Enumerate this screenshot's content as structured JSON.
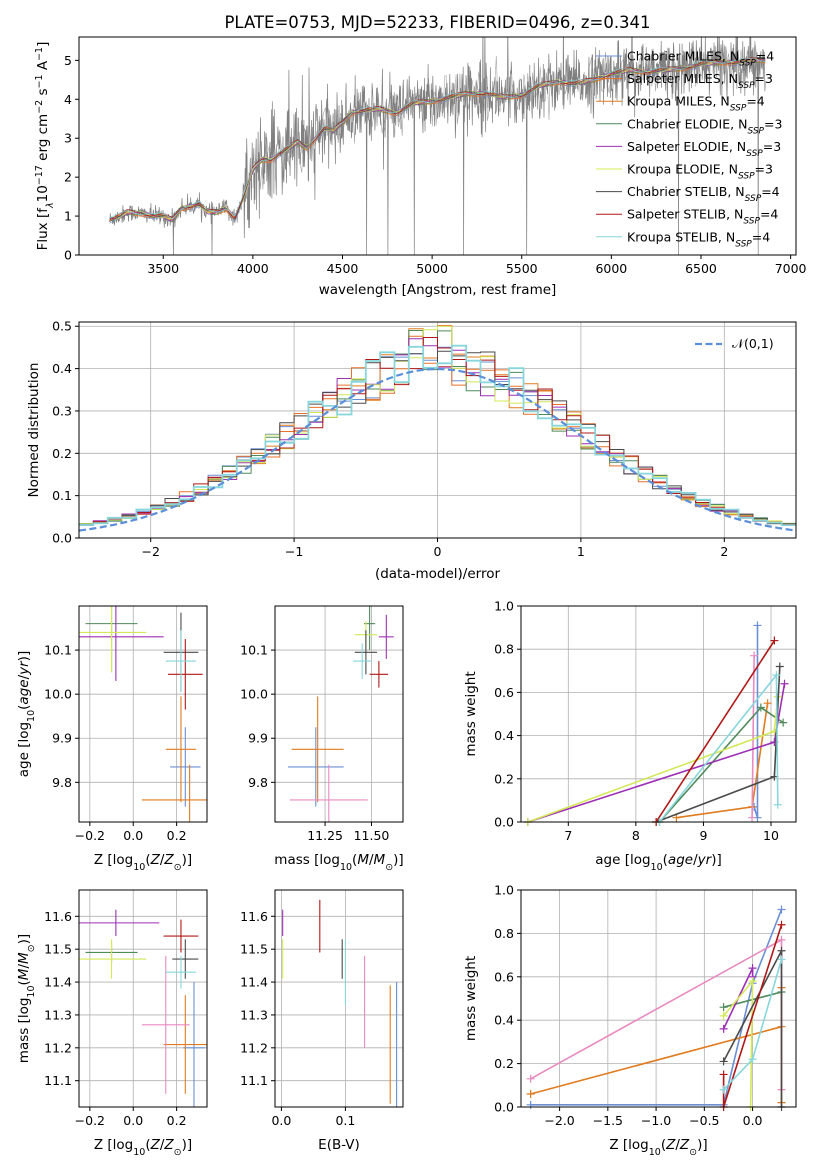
{
  "colors": {
    "Chabrier MILES": "#6a8fd4",
    "Salpeter MILES": "#e8722a",
    "Kroupa MILES": "#e07b1f",
    "Chabrier ELODIE": "#4f8a5a",
    "Salpeter ELODIE": "#9d2fb5",
    "Kroupa ELODIE": "#d4e857",
    "Chabrier STELIB": "#4a4a4a",
    "Salpeter STELIB": "#b01818",
    "Kroupa STELIB": "#87d6dc",
    "pink": "#e88ac0",
    "data": "#808080",
    "normal": "#5b8fd9"
  },
  "chart_data": [
    {
      "id": "spectrum",
      "type": "line",
      "title": "PLATE=0753, MJD=52233, FIBERID=0496, z=0.341",
      "xlabel": "wavelength [Angstrom, rest frame]",
      "ylabel": "Flux [f_λ 10^-17 erg cm^-2 s^-1 A^-1]",
      "xlim": [
        3030,
        7030
      ],
      "ylim": [
        0,
        5.6
      ],
      "xticks": [
        "3500",
        "4000",
        "4500",
        "5000",
        "5500",
        "6000",
        "6500",
        "7000"
      ],
      "yticks": [
        "0",
        "1",
        "2",
        "3",
        "4",
        "5"
      ],
      "grid": false,
      "legend_position": "right",
      "legend": [
        {
          "label": "Chabrier MILES, N_SSP=4"
        },
        {
          "label": "Salpeter MILES, N_SSP=3"
        },
        {
          "label": "Kroupa MILES, N_SSP=4"
        },
        {
          "label": "Chabrier ELODIE, N_SSP=3"
        },
        {
          "label": "Salpeter ELODIE, N_SSP=3"
        },
        {
          "label": "Kroupa ELODIE, N_SSP=3"
        },
        {
          "label": "Chabrier STELIB, N_SSP=4"
        },
        {
          "label": "Salpeter STELIB, N_SSP=4"
        },
        {
          "label": "Kroupa STELIB, N_SSP=4"
        }
      ],
      "model_continuum": {
        "x": [
          3200,
          3260,
          3300,
          3400,
          3450,
          3500,
          3550,
          3600,
          3700,
          3750,
          3800,
          3850,
          3900,
          3950,
          4000,
          4050,
          4100,
          4150,
          4200,
          4250,
          4300,
          4350,
          4400,
          4450,
          4500,
          4550,
          4600,
          4700,
          4800,
          4900,
          5000,
          5100,
          5200,
          5300,
          5400,
          5500,
          5600,
          5700,
          5800,
          5900,
          6000,
          6100,
          6200,
          6300,
          6400,
          6500,
          6600,
          6700,
          6800,
          6860
        ],
        "y": [
          0.9,
          1.0,
          1.1,
          1.05,
          1.0,
          1.0,
          0.9,
          1.2,
          1.3,
          1.1,
          1.1,
          1.2,
          0.95,
          1.5,
          2.2,
          2.45,
          2.45,
          2.6,
          2.75,
          2.9,
          2.75,
          3.0,
          3.25,
          3.2,
          3.4,
          3.65,
          3.7,
          3.75,
          3.65,
          3.9,
          3.95,
          4.05,
          4.15,
          4.15,
          4.05,
          4.1,
          4.35,
          4.45,
          4.4,
          4.5,
          4.65,
          4.75,
          4.7,
          4.75,
          4.8,
          4.9,
          4.95,
          4.95,
          5.0,
          5.0
        ]
      },
      "data_spectrum_range": [
        3200,
        6860
      ]
    },
    {
      "id": "residuals",
      "type": "line",
      "xlabel": "(data-model)/error",
      "ylabel": "Normed distribution",
      "xlim": [
        -2.5,
        2.5
      ],
      "ylim": [
        0,
        0.51
      ],
      "xticks": [
        "−2",
        "−1",
        "0",
        "1",
        "2"
      ],
      "yticks": [
        "0.0",
        "0.1",
        "0.2",
        "0.3",
        "0.4",
        "0.5"
      ],
      "grid": true,
      "legend_position": "top-right",
      "legend": [
        {
          "label": "𝒩(0,1)"
        }
      ],
      "bin_width": 0.1
    },
    {
      "id": "age_vs_Z",
      "type": "scatter",
      "xlabel": "Z [log10(Z/Z⊙)]",
      "ylabel": "age  [log10(age/yr)]",
      "xlim": [
        -0.25,
        0.34
      ],
      "ylim": [
        9.71,
        10.2
      ],
      "xticks": [
        "−0.2",
        "0.0",
        "0.2"
      ],
      "yticks": [
        "9.8",
        "9.9",
        "10.0",
        "10.1"
      ],
      "points": [
        {
          "model": "Chabrier MILES",
          "x": 0.24,
          "y": 9.835,
          "xerr": 0.07,
          "yerr": 0.09
        },
        {
          "model": "Kroupa MILES",
          "x": 0.22,
          "y": 9.875,
          "xerr": 0.07,
          "yerr": 0.12
        },
        {
          "model": "Kroupa MILES",
          "x": 0.26,
          "y": 9.76,
          "xerr": 0.22,
          "yerr": 0.08
        },
        {
          "model": "Chabrier ELODIE",
          "x": -0.1,
          "y": 10.16,
          "xerr": 0.12,
          "yerr": 0.11
        },
        {
          "model": "Salpeter ELODIE",
          "x": -0.08,
          "y": 10.13,
          "xerr": 0.22,
          "yerr": 0.1
        },
        {
          "model": "Kroupa ELODIE",
          "x": -0.1,
          "y": 10.14,
          "xerr": 0.16,
          "yerr": 0.09
        },
        {
          "model": "Chabrier STELIB",
          "x": 0.22,
          "y": 10.095,
          "xerr": 0.08,
          "yerr": 0.09
        },
        {
          "model": "Salpeter STELIB",
          "x": 0.24,
          "y": 10.045,
          "xerr": 0.08,
          "yerr": 0.08
        },
        {
          "model": "Kroupa STELIB",
          "x": 0.22,
          "y": 10.075,
          "xerr": 0.07,
          "yerr": 0.07
        }
      ]
    },
    {
      "id": "age_vs_mass",
      "type": "scatter",
      "xlabel": "mass [log10(M/M⊙)]",
      "ylabel": "",
      "xlim": [
        10.98,
        11.67
      ],
      "ylim": [
        9.71,
        10.2
      ],
      "xticks": [
        "11.25",
        "11.50"
      ],
      "yticks": [
        "9.8",
        "9.9",
        "10.0",
        "10.1"
      ],
      "points": [
        {
          "model": "Chabrier MILES",
          "x": 11.2,
          "y": 9.835,
          "xerr": 0.15,
          "yerr": 0.09
        },
        {
          "model": "Kroupa MILES",
          "x": 11.21,
          "y": 9.875,
          "xerr": 0.14,
          "yerr": 0.12
        },
        {
          "model": "pink",
          "x": 11.27,
          "y": 9.76,
          "xerr": 0.21,
          "yerr": 0.08
        },
        {
          "model": "Chabrier ELODIE",
          "x": 11.49,
          "y": 10.16,
          "xerr": 0.03,
          "yerr": 0.06
        },
        {
          "model": "Salpeter ELODIE",
          "x": 11.58,
          "y": 10.13,
          "xerr": 0.04,
          "yerr": 0.05
        },
        {
          "model": "Kroupa ELODIE",
          "x": 11.47,
          "y": 10.135,
          "xerr": 0.06,
          "yerr": 0.03
        },
        {
          "model": "Chabrier STELIB",
          "x": 11.47,
          "y": 10.095,
          "xerr": 0.06,
          "yerr": 0.05
        },
        {
          "model": "Salpeter STELIB",
          "x": 11.54,
          "y": 10.045,
          "xerr": 0.05,
          "yerr": 0.03
        },
        {
          "model": "Kroupa STELIB",
          "x": 11.45,
          "y": 10.075,
          "xerr": 0.05,
          "yerr": 0.04
        }
      ]
    },
    {
      "id": "mass_weight_vs_age",
      "type": "line",
      "xlabel": "age  [log10(age/yr)]",
      "ylabel": "mass weight",
      "xlim": [
        6.3,
        10.37
      ],
      "ylim": [
        0,
        1.0
      ],
      "xticks": [
        "7",
        "8",
        "9",
        "10"
      ],
      "yticks": [
        "0.0",
        "0.2",
        "0.4",
        "0.6",
        "0.8",
        "1.0"
      ],
      "grid": true,
      "series": [
        {
          "model": "Chabrier MILES",
          "x": [
            9.75,
            9.8,
            9.8
          ],
          "y": [
            0.07,
            0.02,
            0.91
          ]
        },
        {
          "model": "Kroupa MILES",
          "x": [
            8.6,
            9.72,
            9.95
          ],
          "y": [
            0.02,
            0.07,
            0.55
          ]
        },
        {
          "model": "pink",
          "x": [
            9.72,
            9.75
          ],
          "y": [
            0.02,
            0.77
          ]
        },
        {
          "model": "Chabrier ELODIE",
          "x": [
            8.35,
            9.85,
            10.18
          ],
          "y": [
            0.0,
            0.53,
            0.46
          ]
        },
        {
          "model": "Salpeter ELODIE",
          "x": [
            6.4,
            10.05,
            10.2
          ],
          "y": [
            0.0,
            0.37,
            0.64
          ]
        },
        {
          "model": "Kroupa ELODIE",
          "x": [
            6.4,
            10.05,
            10.1
          ],
          "y": [
            0.0,
            0.42,
            0.58
          ]
        },
        {
          "model": "Chabrier STELIB",
          "x": [
            8.3,
            10.05,
            10.13
          ],
          "y": [
            0.0,
            0.21,
            0.72
          ]
        },
        {
          "model": "Salpeter STELIB",
          "x": [
            8.3,
            10.05
          ],
          "y": [
            0.0,
            0.84
          ]
        },
        {
          "model": "Kroupa STELIB",
          "x": [
            8.35,
            10.08,
            10.1
          ],
          "y": [
            0.0,
            0.68,
            0.08
          ]
        }
      ]
    },
    {
      "id": "mass_vs_Z",
      "type": "scatter",
      "xlabel": "Z [log10(Z/Z⊙)]",
      "ylabel": "mass [log10(M/M⊙)]",
      "xlim": [
        -0.25,
        0.34
      ],
      "ylim": [
        11.02,
        11.68
      ],
      "xticks": [
        "−0.2",
        "0.0",
        "0.2"
      ],
      "yticks": [
        "11.1",
        "11.2",
        "11.3",
        "11.4",
        "11.5",
        "11.6"
      ],
      "points": [
        {
          "model": "Chabrier MILES",
          "x": 0.28,
          "y": 11.2,
          "xerr": 0.05,
          "yerr": 0.2
        },
        {
          "model": "Kroupa MILES",
          "x": 0.24,
          "y": 11.21,
          "xerr": 0.1,
          "yerr": 0.15
        },
        {
          "model": "pink",
          "x": 0.15,
          "y": 11.27,
          "xerr": 0.11,
          "yerr": 0.21
        },
        {
          "model": "Chabrier ELODIE",
          "x": -0.1,
          "y": 11.49,
          "xerr": 0.12,
          "yerr": 0.03
        },
        {
          "model": "Salpeter ELODIE",
          "x": -0.08,
          "y": 11.58,
          "xerr": 0.2,
          "yerr": 0.04
        },
        {
          "model": "Kroupa ELODIE",
          "x": -0.1,
          "y": 11.47,
          "xerr": 0.16,
          "yerr": 0.06
        },
        {
          "model": "Chabrier STELIB",
          "x": 0.24,
          "y": 11.47,
          "xerr": 0.06,
          "yerr": 0.06
        },
        {
          "model": "Salpeter STELIB",
          "x": 0.22,
          "y": 11.54,
          "xerr": 0.08,
          "yerr": 0.05
        },
        {
          "model": "Kroupa STELIB",
          "x": 0.22,
          "y": 11.43,
          "xerr": 0.07,
          "yerr": 0.05
        }
      ]
    },
    {
      "id": "mass_vs_ebv",
      "type": "scatter",
      "xlabel": "E(B-V)",
      "ylabel": "",
      "xlim": [
        -0.01,
        0.19
      ],
      "ylim": [
        11.02,
        11.68
      ],
      "xticks": [
        "0.0",
        "0.1"
      ],
      "yticks": [
        "11.1",
        "11.2",
        "11.3",
        "11.4",
        "11.5",
        "11.6"
      ],
      "points": [
        {
          "model": "Chabrier MILES",
          "x": 0.18,
          "y": 11.2,
          "yerr": 0.2
        },
        {
          "model": "Kroupa MILES",
          "x": 0.17,
          "y": 11.21,
          "yerr": 0.18
        },
        {
          "model": "pink",
          "x": 0.13,
          "y": 11.34,
          "yerr": 0.14
        },
        {
          "model": "Salpeter ELODIE",
          "x": 0.002,
          "y": 11.58,
          "yerr": 0.04
        },
        {
          "model": "Kroupa ELODIE",
          "x": 0.002,
          "y": 11.47,
          "yerr": 0.06
        },
        {
          "model": "Chabrier STELIB",
          "x": 0.095,
          "y": 11.47,
          "yerr": 0.06
        },
        {
          "model": "Salpeter STELIB",
          "x": 0.06,
          "y": 11.57,
          "yerr": 0.08
        },
        {
          "model": "Kroupa STELIB",
          "x": 0.1,
          "y": 11.43,
          "yerr": 0.1
        }
      ]
    },
    {
      "id": "mass_weight_vs_Z",
      "type": "line",
      "xlabel": "Z [log10(Z/Z⊙)]",
      "ylabel": "mass weight",
      "xlim": [
        -2.4,
        0.45
      ],
      "ylim": [
        0,
        1.0
      ],
      "xticks": [
        "−2.0",
        "−1.5",
        "−1.0",
        "−0.5",
        "0.0"
      ],
      "yticks": [
        "0.0",
        "0.2",
        "0.4",
        "0.6",
        "0.8",
        "1.0"
      ],
      "grid": true,
      "series": [
        {
          "model": "Chabrier MILES",
          "x": [
            -2.3,
            -0.3,
            0.0,
            0.3
          ],
          "y": [
            0.01,
            0.01,
            0.57,
            0.91
          ]
        },
        {
          "model": "Kroupa MILES",
          "x": [
            -2.3,
            0.3,
            0.3,
            0.3
          ],
          "y": [
            0.06,
            0.37,
            0.55,
            0.02
          ]
        },
        {
          "model": "pink",
          "x": [
            -2.3,
            0.3,
            0.3
          ],
          "y": [
            0.13,
            0.77,
            0.08
          ]
        },
        {
          "model": "Chabrier ELODIE",
          "x": [
            -0.3,
            0.3
          ],
          "y": [
            0.46,
            0.53
          ]
        },
        {
          "model": "Salpeter ELODIE",
          "x": [
            -0.3,
            0.0,
            0.0
          ],
          "y": [
            0.36,
            0.64,
            0.6
          ]
        },
        {
          "model": "Kroupa ELODIE",
          "x": [
            -0.3,
            0.0,
            -0.02
          ],
          "y": [
            0.42,
            0.58,
            0.0
          ]
        },
        {
          "model": "Chabrier STELIB",
          "x": [
            -0.3,
            0.3,
            0.3
          ],
          "y": [
            0.21,
            0.72,
            0.0
          ]
        },
        {
          "model": "Salpeter STELIB",
          "x": [
            -0.3,
            -0.3,
            0.3
          ],
          "y": [
            0.15,
            0.0,
            0.84
          ]
        },
        {
          "model": "Kroupa STELIB",
          "x": [
            -0.3,
            0.0,
            0.3
          ],
          "y": [
            0.08,
            0.22,
            0.68
          ]
        }
      ]
    }
  ]
}
